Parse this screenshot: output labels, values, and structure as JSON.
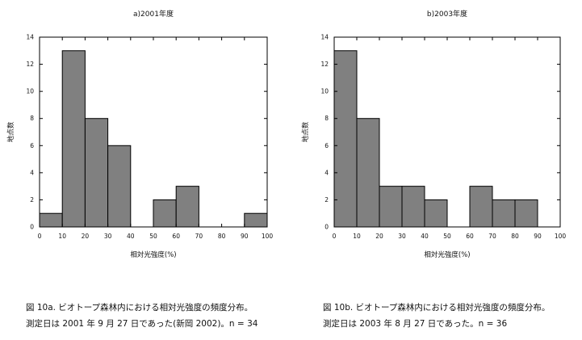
{
  "chart_data": [
    {
      "type": "bar",
      "title": "a)2001年度",
      "xlabel": "相対光強度(%)",
      "ylabel": "地点数",
      "bin_edges": [
        0,
        10,
        20,
        30,
        40,
        50,
        60,
        70,
        80,
        90,
        100
      ],
      "values": [
        1,
        13,
        8,
        6,
        0,
        2,
        3,
        0,
        0,
        1
      ],
      "xlim": [
        0,
        100
      ],
      "ylim": [
        0,
        14
      ],
      "xticks": [
        "0",
        "10",
        "20",
        "30",
        "40",
        "50",
        "60",
        "70",
        "80",
        "90",
        "100"
      ],
      "yticks": [
        "0",
        "2",
        "4",
        "6",
        "8",
        "10",
        "12",
        "14"
      ],
      "bar_color": "#808080",
      "grid": false
    },
    {
      "type": "bar",
      "title": "b)2003年度",
      "xlabel": "相対光強度(%)",
      "ylabel": "地点数",
      "bin_edges": [
        0,
        10,
        20,
        30,
        40,
        50,
        60,
        70,
        80,
        90,
        100
      ],
      "values": [
        13,
        8,
        3,
        3,
        2,
        0,
        3,
        2,
        2,
        0
      ],
      "xlim": [
        0,
        100
      ],
      "ylim": [
        0,
        14
      ],
      "xticks": [
        "0",
        "10",
        "20",
        "30",
        "40",
        "50",
        "60",
        "70",
        "80",
        "90",
        "100"
      ],
      "yticks": [
        "0",
        "2",
        "4",
        "6",
        "8",
        "10",
        "12",
        "14"
      ],
      "bar_color": "#808080",
      "grid": false
    }
  ],
  "captions": {
    "a": {
      "line1": "図 10a. ビオトープ森林内における相対光強度の頻度分布。",
      "line2": "測定日は 2001 年 9 月 27 日であった(新岡 2002)。n = 34"
    },
    "b": {
      "line1": "図 10b. ビオトープ森林内における相対光強度の頻度分布。",
      "line2": "測定日は 2003 年 8 月 27 日であった。n = 36"
    }
  }
}
